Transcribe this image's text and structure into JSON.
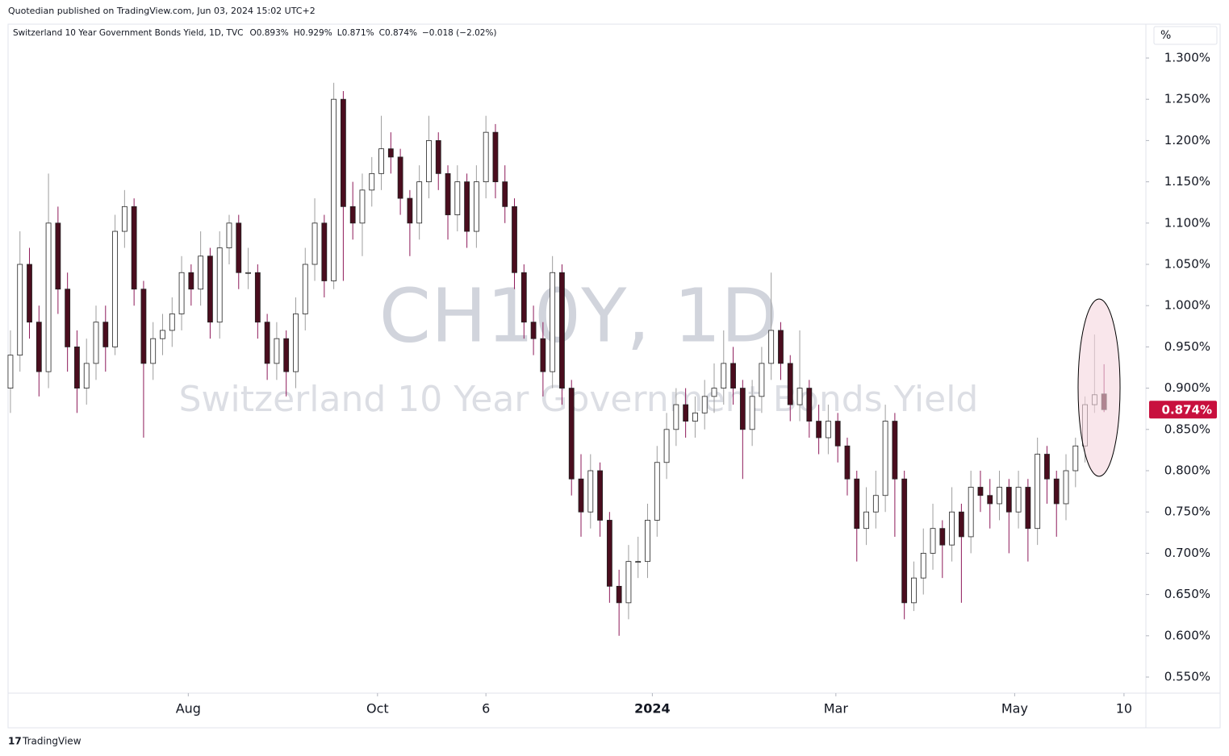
{
  "publisher": "Quotedian published on TradingView.com, Jun 03, 2024 15:02 UTC+2",
  "footer": "TradingView",
  "chart_data": {
    "type": "candlestick",
    "title": "Switzerland 10 Year Government Bonds Yield, 1D, TVC",
    "legend_values": [
      "O0.893%",
      "H0.929%",
      "L0.871%",
      "C0.874%",
      "−0.018 (−2.02%)"
    ],
    "watermark": [
      "CH10Y, 1D",
      "Switzerland 10 Year Government Bonds Yield"
    ],
    "y_unit": "%",
    "last_label": "0.874%",
    "up_color": "#ffffff",
    "down_color": "#4a0d1e",
    "up_wick": "#9e9e9e",
    "down_wick": "#8e1a5a",
    "label_color": "#c8103e",
    "ylim": [
      0.5305,
      1.341
    ],
    "yticks": [
      {
        "value": 0.55,
        "label": "0.550%"
      },
      {
        "value": 0.6,
        "label": "0.600%"
      },
      {
        "value": 0.65,
        "label": "0.650%"
      },
      {
        "value": 0.7,
        "label": "0.700%"
      },
      {
        "value": 0.75,
        "label": "0.750%"
      },
      {
        "value": 0.8,
        "label": "0.800%"
      },
      {
        "value": 0.85,
        "label": "0.850%"
      },
      {
        "value": 0.9,
        "label": "0.900%"
      },
      {
        "value": 0.95,
        "label": "0.950%"
      },
      {
        "value": 1.0,
        "label": "1.000%"
      },
      {
        "value": 1.05,
        "label": "1.050%"
      },
      {
        "value": 1.1,
        "label": "1.100%"
      },
      {
        "value": 1.15,
        "label": "1.150%"
      },
      {
        "value": 1.2,
        "label": "1.200%"
      },
      {
        "value": 1.25,
        "label": "1.250%"
      },
      {
        "value": 1.3,
        "label": "1.300%"
      }
    ],
    "xlim": [
      -0.25,
      119.4
    ],
    "xticks": [
      {
        "value": 18.7,
        "label": "Aug"
      },
      {
        "value": 38.6,
        "label": "Oct"
      },
      {
        "value": 50,
        "label": "6"
      },
      {
        "value": 67.5,
        "label": "2024"
      },
      {
        "value": 86.8,
        "label": "Mar"
      },
      {
        "value": 105.6,
        "label": "May"
      },
      {
        "value": 117.1,
        "label": "10"
      }
    ],
    "open": [
      0.9,
      0.94,
      1.05,
      0.98,
      0.92,
      1.1,
      1.02,
      0.95,
      0.9,
      0.93,
      0.98,
      0.95,
      1.09,
      1.12,
      1.02,
      0.93,
      0.96,
      0.97,
      0.99,
      1.04,
      1.02,
      1.06,
      0.98,
      1.07,
      1.1,
      1.04,
      1.04,
      0.98,
      0.93,
      0.96,
      0.92,
      0.99,
      1.05,
      1.1,
      1.03,
      1.25,
      1.12,
      1.1,
      1.14,
      1.16,
      1.19,
      1.18,
      1.13,
      1.1,
      1.15,
      1.2,
      1.16,
      1.11,
      1.15,
      1.09,
      1.15,
      1.21,
      1.15,
      1.12,
      1.04,
      0.98,
      0.96,
      0.92,
      1.04,
      0.9,
      0.79,
      0.75,
      0.8,
      0.74,
      0.66,
      0.64,
      0.69,
      0.69,
      0.74,
      0.81,
      0.85,
      0.88,
      0.86,
      0.87,
      0.89,
      0.9,
      0.93,
      0.9,
      0.85,
      0.89,
      0.93,
      0.97,
      0.93,
      0.88,
      0.9,
      0.86,
      0.84,
      0.86,
      0.83,
      0.79,
      0.73,
      0.75,
      0.77,
      0.86,
      0.79,
      0.64,
      0.67,
      0.7,
      0.73,
      0.71,
      0.75,
      0.72,
      0.78,
      0.77,
      0.76,
      0.78,
      0.75,
      0.78,
      0.73,
      0.82,
      0.79,
      0.76,
      0.8,
      0.83,
      0.88,
      0.893
    ],
    "high": [
      0.97,
      1.09,
      1.07,
      1.0,
      1.16,
      1.12,
      1.04,
      0.97,
      0.96,
      1.0,
      1.0,
      1.11,
      1.14,
      1.13,
      1.03,
      0.98,
      0.99,
      1.01,
      1.06,
      1.05,
      1.09,
      1.07,
      1.09,
      1.11,
      1.11,
      1.07,
      1.05,
      0.99,
      0.98,
      0.97,
      1.01,
      1.07,
      1.13,
      1.11,
      1.27,
      1.26,
      1.15,
      1.16,
      1.18,
      1.23,
      1.21,
      1.19,
      1.14,
      1.17,
      1.23,
      1.21,
      1.17,
      1.17,
      1.16,
      1.17,
      1.23,
      1.22,
      1.17,
      1.13,
      1.05,
      1.0,
      0.98,
      1.06,
      1.05,
      0.91,
      0.82,
      0.82,
      0.81,
      0.75,
      0.68,
      0.71,
      0.72,
      0.76,
      0.83,
      0.87,
      0.9,
      0.9,
      0.89,
      0.91,
      0.93,
      0.97,
      0.95,
      0.91,
      0.91,
      0.95,
      1.04,
      0.98,
      0.94,
      0.97,
      0.91,
      0.88,
      0.88,
      0.87,
      0.84,
      0.8,
      0.78,
      0.8,
      0.88,
      0.87,
      0.8,
      0.69,
      0.73,
      0.76,
      0.74,
      0.78,
      0.76,
      0.8,
      0.8,
      0.79,
      0.8,
      0.79,
      0.8,
      0.79,
      0.84,
      0.83,
      0.8,
      0.82,
      0.84,
      0.89,
      0.965,
      0.929
    ],
    "low": [
      0.87,
      0.92,
      0.96,
      0.89,
      0.9,
      0.99,
      0.92,
      0.87,
      0.88,
      0.91,
      0.92,
      0.94,
      1.07,
      1.0,
      0.84,
      0.91,
      0.94,
      0.95,
      0.97,
      1.0,
      1.0,
      0.96,
      0.96,
      1.05,
      1.02,
      1.02,
      0.96,
      0.91,
      0.91,
      0.89,
      0.9,
      0.97,
      1.03,
      1.01,
      1.02,
      1.03,
      1.08,
      1.06,
      1.12,
      1.14,
      1.16,
      1.11,
      1.06,
      1.08,
      1.13,
      1.14,
      1.08,
      1.09,
      1.07,
      1.07,
      1.13,
      1.13,
      1.1,
      1.02,
      0.96,
      0.94,
      0.89,
      0.9,
      0.88,
      0.77,
      0.72,
      0.73,
      0.72,
      0.64,
      0.6,
      0.62,
      0.67,
      0.67,
      0.72,
      0.79,
      0.83,
      0.84,
      0.84,
      0.85,
      0.87,
      0.88,
      0.88,
      0.79,
      0.83,
      0.87,
      0.91,
      0.91,
      0.86,
      0.86,
      0.84,
      0.82,
      0.82,
      0.81,
      0.77,
      0.69,
      0.71,
      0.73,
      0.75,
      0.72,
      0.62,
      0.63,
      0.65,
      0.68,
      0.67,
      0.69,
      0.64,
      0.7,
      0.75,
      0.73,
      0.74,
      0.7,
      0.73,
      0.69,
      0.71,
      0.76,
      0.72,
      0.74,
      0.78,
      0.81,
      0.87,
      0.871
    ],
    "close": [
      0.94,
      1.05,
      0.98,
      0.92,
      1.1,
      1.02,
      0.95,
      0.9,
      0.93,
      0.98,
      0.95,
      1.09,
      1.12,
      1.02,
      0.93,
      0.96,
      0.97,
      0.99,
      1.04,
      1.02,
      1.06,
      0.98,
      1.07,
      1.1,
      1.04,
      1.04,
      0.98,
      0.93,
      0.96,
      0.92,
      0.99,
      1.05,
      1.1,
      1.03,
      1.25,
      1.12,
      1.1,
      1.14,
      1.16,
      1.19,
      1.18,
      1.13,
      1.1,
      1.15,
      1.2,
      1.16,
      1.11,
      1.15,
      1.09,
      1.15,
      1.21,
      1.15,
      1.12,
      1.04,
      0.98,
      0.96,
      0.92,
      1.04,
      0.9,
      0.79,
      0.75,
      0.8,
      0.74,
      0.66,
      0.64,
      0.69,
      0.69,
      0.74,
      0.81,
      0.85,
      0.88,
      0.86,
      0.87,
      0.89,
      0.9,
      0.93,
      0.9,
      0.85,
      0.89,
      0.93,
      0.97,
      0.93,
      0.88,
      0.9,
      0.86,
      0.84,
      0.86,
      0.83,
      0.79,
      0.73,
      0.75,
      0.77,
      0.86,
      0.79,
      0.64,
      0.67,
      0.7,
      0.73,
      0.71,
      0.75,
      0.72,
      0.78,
      0.77,
      0.76,
      0.78,
      0.75,
      0.78,
      0.73,
      0.82,
      0.79,
      0.76,
      0.8,
      0.83,
      0.88,
      0.892,
      0.874
    ]
  }
}
